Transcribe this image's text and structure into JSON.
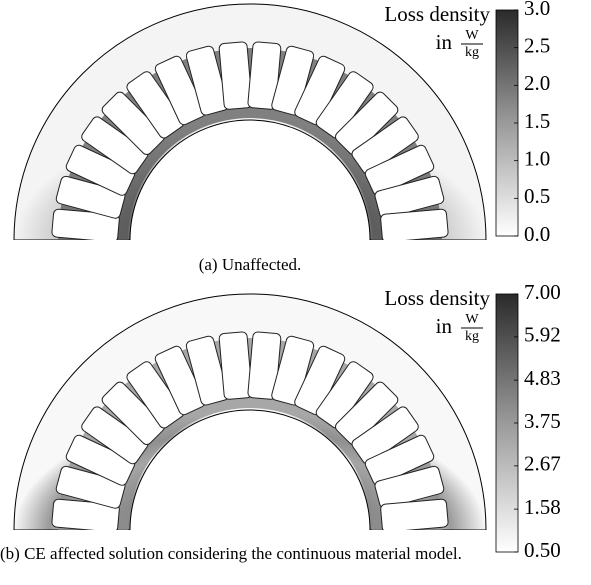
{
  "figures": [
    {
      "colorbar": {
        "title": "Loss density",
        "unit_prefix": "in",
        "unit_numerator": "W",
        "unit_denominator": "kg",
        "range": [
          0,
          3
        ],
        "ticks": [
          {
            "value": 3,
            "label": "3.0"
          },
          2.5,
          {
            "value": 2,
            "label": "2.0"
          },
          1.5,
          {
            "value": 1,
            "label": "1.0"
          },
          0.5,
          {
            "value": 0,
            "label": "0.0"
          }
        ]
      },
      "caption": "(a) Unaffected."
    },
    {
      "colorbar": {
        "title": "Loss density",
        "unit_prefix": "in",
        "unit_numerator": "W",
        "unit_denominator": "kg",
        "range": [
          0.5,
          7
        ],
        "ticks": [
          {
            "value": 7,
            "label": "7.00"
          },
          5.92,
          4.83,
          3.75,
          2.67,
          1.58,
          {
            "value": 0.5,
            "label": "0.50"
          }
        ]
      },
      "caption": "(b) CE affected solution considering the continuous material model."
    }
  ]
}
